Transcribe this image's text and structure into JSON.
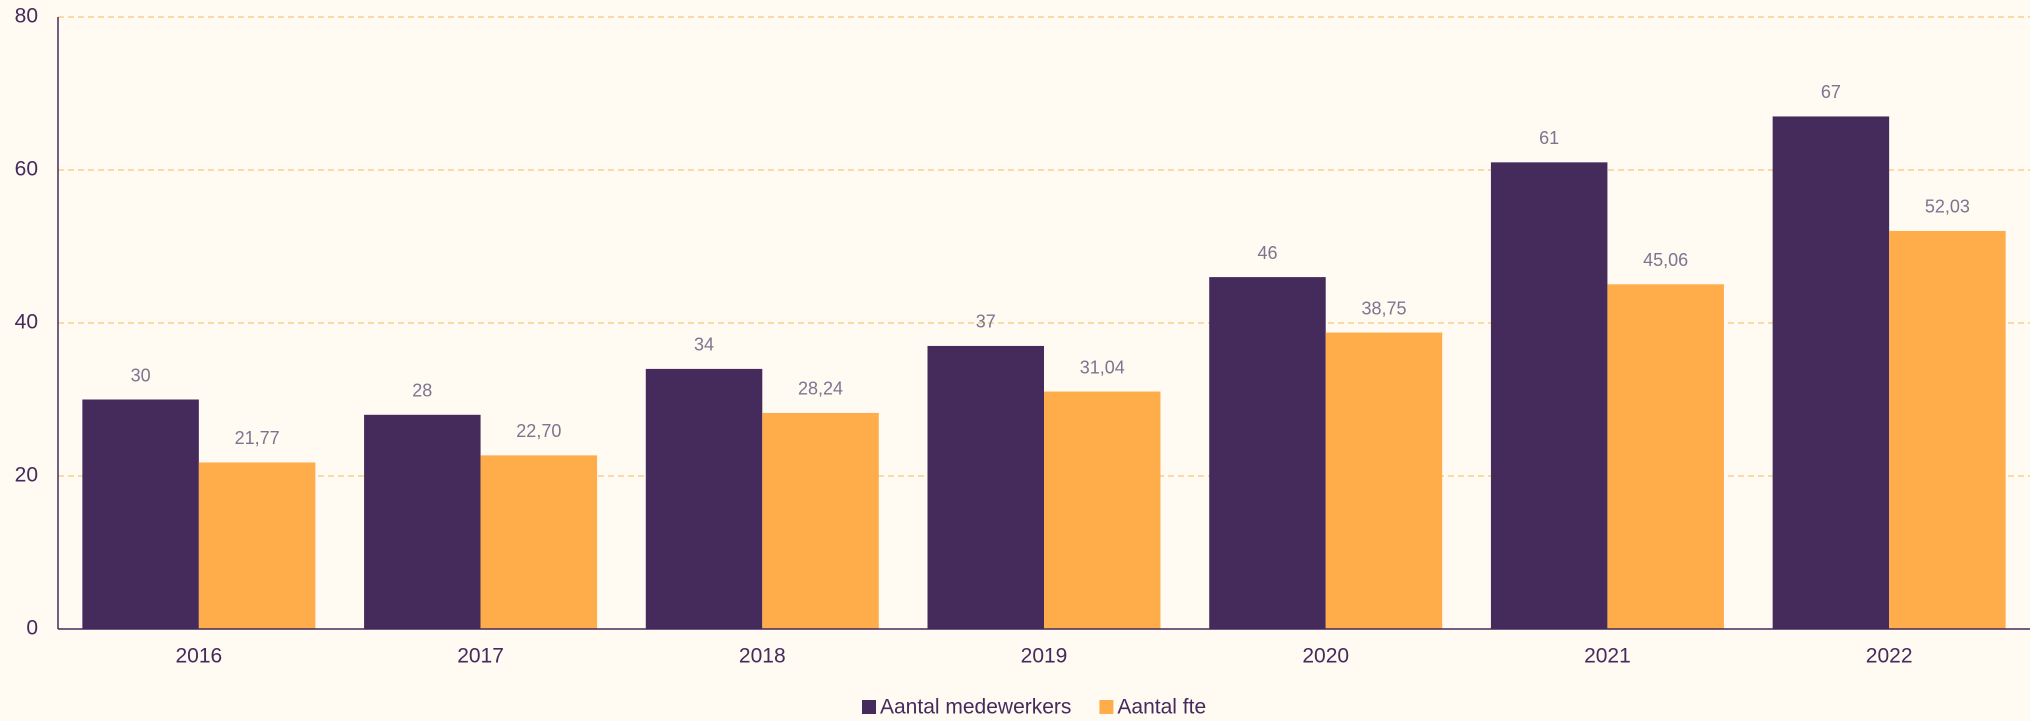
{
  "chart_data": {
    "type": "bar",
    "categories": [
      "2016",
      "2017",
      "2018",
      "2019",
      "2020",
      "2021",
      "2022"
    ],
    "series": [
      {
        "name": "Aantal medewerkers",
        "color": "#452a5c",
        "values": [
          30,
          28,
          34,
          37,
          46,
          61,
          67
        ]
      },
      {
        "name": "Aantal fte",
        "color": "#ffad4a",
        "values": [
          21.77,
          22.7,
          28.24,
          31.04,
          38.75,
          45.06,
          52.03
        ],
        "value_labels": [
          "21,77",
          "22,70",
          "28,24",
          "31,04",
          "38,75",
          "45,06",
          "52,03"
        ]
      }
    ],
    "ylim": [
      0,
      80
    ],
    "yticks": [
      0,
      20,
      40,
      60,
      80
    ],
    "grid": true
  }
}
